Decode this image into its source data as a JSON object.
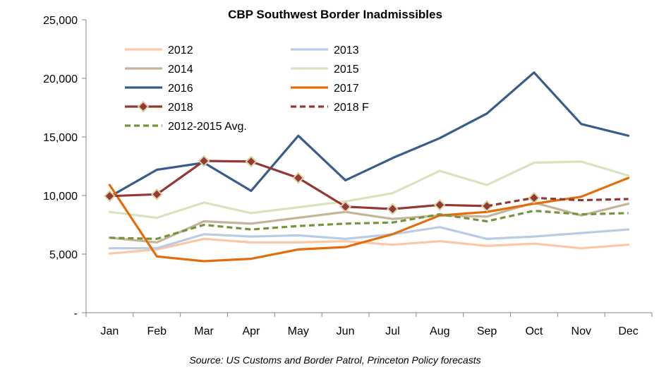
{
  "chart_data": {
    "type": "line",
    "title": "CBP Southwest Border Inadmissibles",
    "source": "Source: US Customs and Border Patrol, Princeton Policy forecasts",
    "categories": [
      "Jan",
      "Feb",
      "Mar",
      "Apr",
      "May",
      "Jun",
      "Jul",
      "Aug",
      "Sep",
      "Oct",
      "Nov",
      "Dec"
    ],
    "ylim": [
      0,
      25000
    ],
    "yticks": [
      0,
      5000,
      10000,
      15000,
      20000,
      25000
    ],
    "ytick_labels": [
      "-",
      "5,000",
      "10,000",
      "15,000",
      "20,000",
      "25,000"
    ],
    "grid": false,
    "legend_position": "top-left",
    "series": [
      {
        "name": "2012",
        "color": "#FAC8A6",
        "style": "solid",
        "marker": "none",
        "values": [
          5050,
          5400,
          6300,
          6000,
          6000,
          6100,
          5800,
          6100,
          5700,
          5900,
          5500,
          5800
        ]
      },
      {
        "name": "2013",
        "color": "#B8CCE4",
        "style": "solid",
        "marker": "none",
        "values": [
          5500,
          5500,
          6700,
          6500,
          6600,
          6300,
          6700,
          7300,
          6300,
          6500,
          6800,
          7100
        ]
      },
      {
        "name": "2014",
        "color": "#C4B59A",
        "style": "solid",
        "marker": "none",
        "values": [
          6400,
          6000,
          7800,
          7600,
          8100,
          8600,
          8000,
          8300,
          8200,
          9400,
          8300,
          9300
        ]
      },
      {
        "name": "2015",
        "color": "#D7E4BD",
        "style": "solid",
        "marker": "none",
        "values": [
          8600,
          8100,
          9400,
          8500,
          9000,
          9500,
          10200,
          12100,
          10900,
          12800,
          12900,
          11700
        ]
      },
      {
        "name": "2016",
        "color": "#385D8A",
        "style": "solid",
        "marker": "none",
        "values": [
          9900,
          12200,
          12800,
          10400,
          15100,
          11300,
          13200,
          14900,
          17000,
          20500,
          16100,
          15100
        ]
      },
      {
        "name": "2017",
        "color": "#E46C0A",
        "style": "solid",
        "marker": "none",
        "values": [
          10900,
          4800,
          4400,
          4600,
          5400,
          5600,
          6700,
          8300,
          8600,
          9300,
          9900,
          11500
        ]
      },
      {
        "name": "2018",
        "color": "#953735",
        "style": "solid",
        "marker": "diamond",
        "values": [
          9950,
          10100,
          12950,
          12900,
          11500,
          9050,
          8850,
          9200,
          9100,
          null,
          null,
          null
        ]
      },
      {
        "name": "2018 F",
        "color": "#953735",
        "style": "dashed",
        "marker": "none",
        "values": [
          null,
          null,
          null,
          null,
          null,
          null,
          null,
          null,
          9100,
          9800,
          9600,
          9700
        ]
      },
      {
        "name": "2012-2015 Avg.",
        "color": "#77933C",
        "style": "dashed",
        "marker": "none",
        "values": [
          6400,
          6300,
          7500,
          7100,
          7400,
          7600,
          7700,
          8400,
          7800,
          8700,
          8400,
          8500
        ]
      }
    ],
    "extra_markers": [
      {
        "series": "2018 F",
        "index": 9,
        "value": 9800,
        "marker": "diamond"
      }
    ]
  }
}
